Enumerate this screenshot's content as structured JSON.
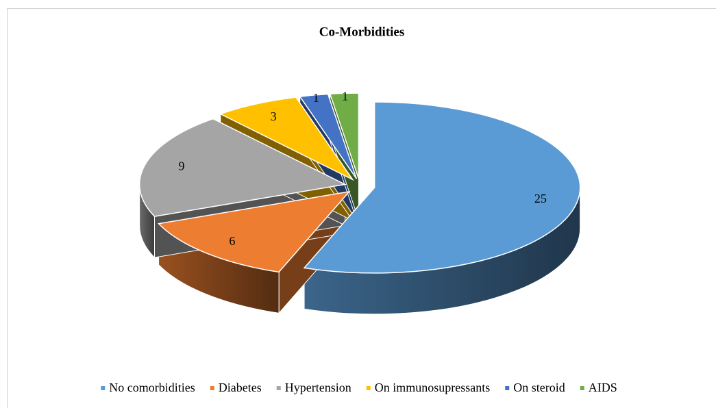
{
  "chart_data": {
    "type": "pie",
    "title": "Co-Morbidities",
    "categories": [
      "No comorbidities",
      "Diabetes",
      "Hypertension",
      "On immunosupressants",
      "On steroid",
      "AIDS"
    ],
    "values": [
      25,
      6,
      9,
      3,
      1,
      1
    ],
    "colors": [
      "#5b9bd5",
      "#ed7d31",
      "#a5a5a5",
      "#ffc000",
      "#4472c4",
      "#70ad47"
    ],
    "legend": "bottom"
  }
}
